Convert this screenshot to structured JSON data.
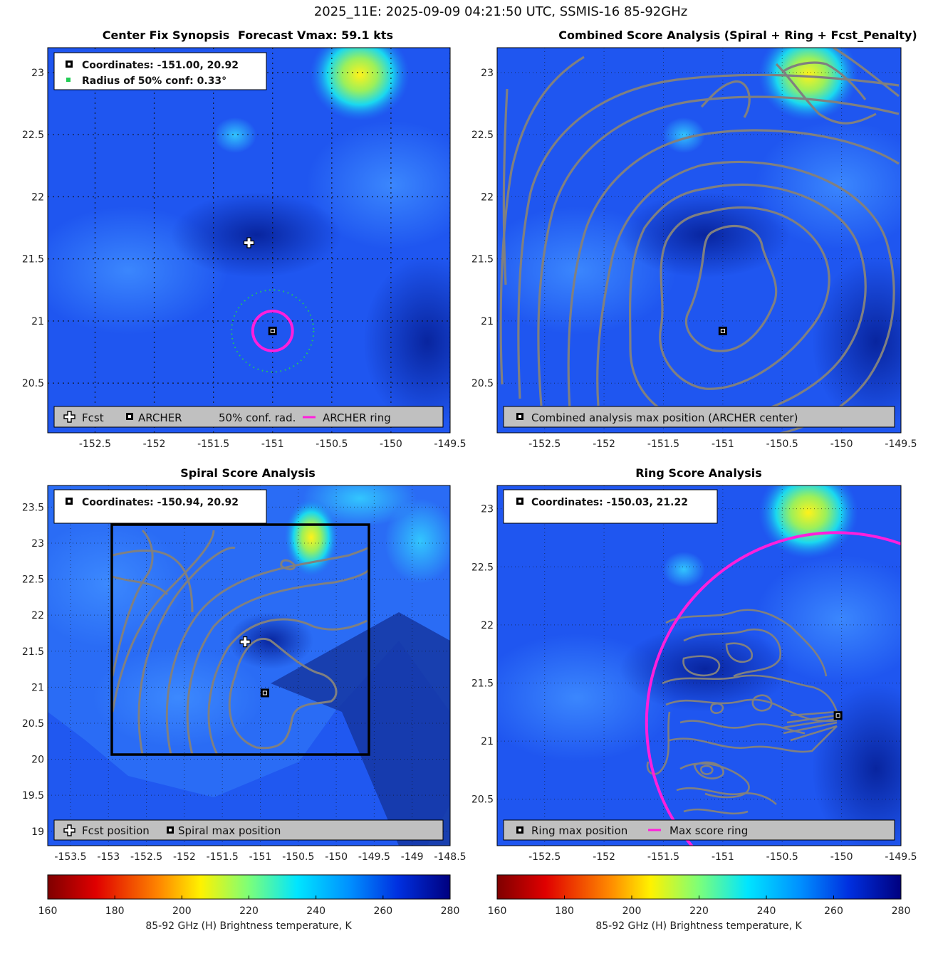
{
  "suptitle": "2025_11E: 2025-09-09 04:21:50 UTC, SSMIS-16 85-92GHz",
  "colors": {
    "background_field": "#1f56f0",
    "contour": "#808080",
    "archer_ring": "#ff1fdc",
    "conf_radius": "#22cc55",
    "box": "#000000"
  },
  "panels": {
    "synopsis": {
      "title_left": "Center Fix Synopsis",
      "title_right": "Forecast Vmax: 59.1 kts",
      "info_coords": "Coordinates: -151.00, 20.92",
      "info_radius": "Radius of 50% conf: 0.33°",
      "legend": [
        "Fcst",
        "ARCHER",
        "50% conf. rad.",
        "ARCHER ring"
      ]
    },
    "combined": {
      "title": "Combined Score Analysis (Spiral + Ring + Fcst_Penalty)",
      "legend": [
        "Combined analysis max position (ARCHER center)"
      ]
    },
    "spiral": {
      "title": "Spiral Score Analysis",
      "info_coords": "Coordinates: -150.94, 20.92",
      "legend": [
        "Fcst position",
        "Spiral max position"
      ]
    },
    "ring": {
      "title": "Ring Score Analysis",
      "info_coords": "Coordinates: -150.03, 21.22",
      "legend": [
        "Ring max position",
        "Max score ring"
      ]
    }
  },
  "colorbar": {
    "label": "85-92 GHz (H) Brightness temperature, K",
    "range": [
      160,
      280
    ],
    "ticks": [
      "160",
      "180",
      "200",
      "220",
      "240",
      "260",
      "280"
    ]
  },
  "chart_data": [
    {
      "type": "heatmap",
      "title": "Center Fix Synopsis",
      "xlim": [
        -152.9,
        -149.5
      ],
      "ylim": [
        20.1,
        23.2
      ],
      "xticks": [
        -152.5,
        -152,
        -151.5,
        -151,
        -150.5,
        -150,
        -149.5
      ],
      "yticks": [
        20.5,
        21,
        21.5,
        22,
        22.5,
        23
      ],
      "points": {
        "fcst": [
          -151.2,
          21.63
        ],
        "archer": [
          -151.0,
          20.92
        ]
      },
      "conf_radius_deg": 0.33,
      "archer_ring_radius_deg": 0.16
    },
    {
      "type": "heatmap",
      "title": "Combined Score Analysis (Spiral + Ring + Fcst_Penalty)",
      "xlim": [
        -152.9,
        -149.5
      ],
      "ylim": [
        20.1,
        23.2
      ],
      "xticks": [
        -152.5,
        -152,
        -151.5,
        -151,
        -150.5,
        -150,
        -149.5
      ],
      "yticks": [
        20.5,
        21,
        21.5,
        22,
        22.5,
        23
      ],
      "points": {
        "combined_max": [
          -151.0,
          20.92
        ]
      }
    },
    {
      "type": "heatmap",
      "title": "Spiral Score Analysis",
      "xlim": [
        -153.8,
        -148.5
      ],
      "ylim": [
        18.8,
        23.8
      ],
      "xticks": [
        -153.5,
        -153,
        -152.5,
        -152,
        -151.5,
        -151,
        -150.5,
        -150,
        -149.5,
        -149,
        -148.5
      ],
      "yticks": [
        19,
        19.5,
        20,
        20.5,
        21,
        21.5,
        22,
        22.5,
        23,
        23.5
      ],
      "points": {
        "fcst": [
          -151.2,
          21.63
        ],
        "spiral_max": [
          -150.94,
          20.92
        ]
      },
      "box": {
        "lon": [
          -152.95,
          -149.55
        ],
        "lat": [
          20.02,
          23.23
        ]
      }
    },
    {
      "type": "heatmap",
      "title": "Ring Score Analysis",
      "xlim": [
        -152.9,
        -149.5
      ],
      "ylim": [
        20.1,
        23.2
      ],
      "xticks": [
        -152.5,
        -152,
        -151.5,
        -151,
        -150.5,
        -150,
        -149.5
      ],
      "yticks": [
        20.5,
        21,
        21.5,
        22,
        22.5,
        23
      ],
      "points": {
        "ring_max": [
          -150.03,
          21.22
        ]
      }
    }
  ]
}
